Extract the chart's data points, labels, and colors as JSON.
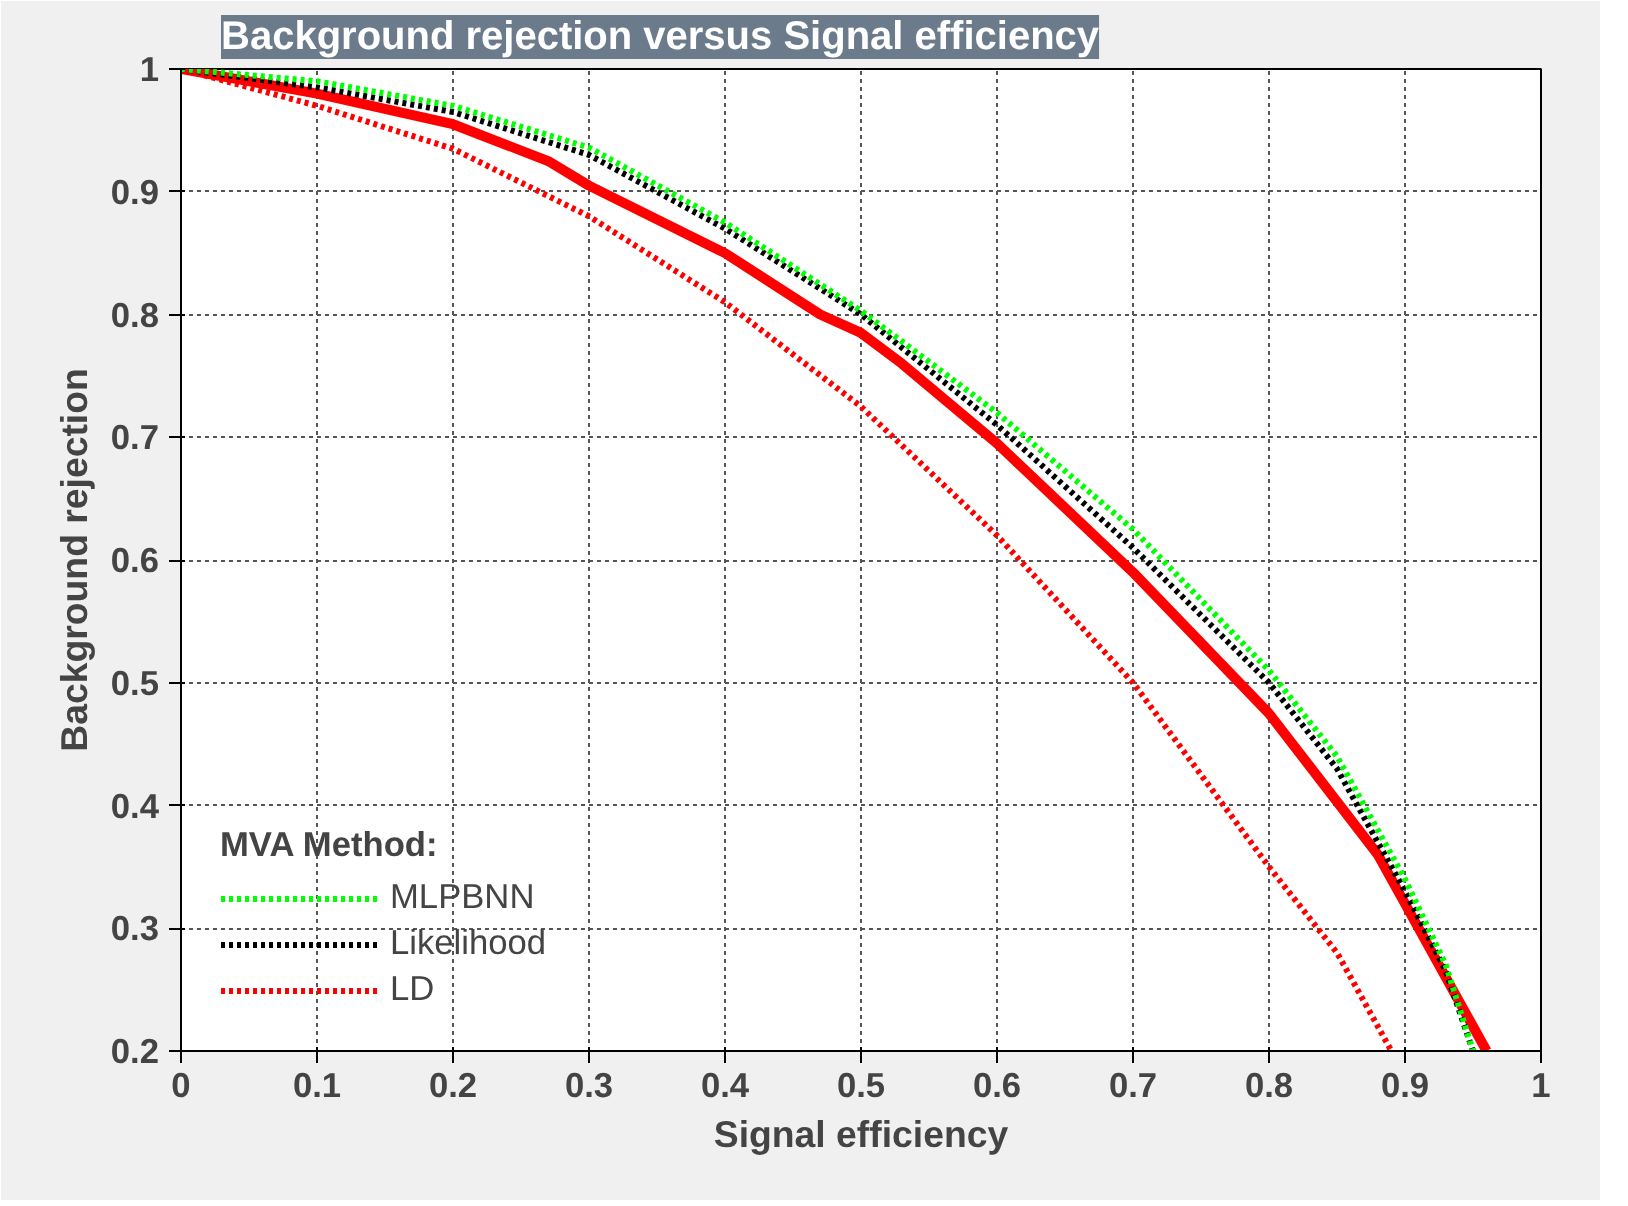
{
  "chart_data": {
    "type": "line",
    "title": "Background rejection versus Signal efficiency",
    "xlabel": "Signal efficiency",
    "ylabel": "Background rejection",
    "legend_title": "MVA Method:",
    "legend": "bottom left",
    "grid": true,
    "marker": "none",
    "xlim": [
      0,
      1
    ],
    "ylim": [
      0.2,
      1
    ],
    "xticks": [
      0,
      0.1,
      0.2,
      0.3,
      0.4,
      0.5,
      0.6,
      0.7,
      0.8,
      0.9,
      1
    ],
    "yticks": [
      0.2,
      0.3,
      0.4,
      0.5,
      0.6,
      0.7,
      0.8,
      0.9,
      1
    ],
    "series": [
      {
        "name": "MLPBNN",
        "color": "#00ff00",
        "line_style": "dotted",
        "x": [
          0,
          0.1,
          0.2,
          0.3,
          0.4,
          0.5,
          0.6,
          0.7,
          0.8,
          0.85,
          0.9,
          0.93,
          0.95
        ],
        "values": [
          1,
          0.99,
          0.97,
          0.936,
          0.875,
          0.803,
          0.72,
          0.625,
          0.51,
          0.44,
          0.34,
          0.27,
          0.2
        ]
      },
      {
        "name": "Likelihood",
        "color": "#000000",
        "line_style": "dotted",
        "x": [
          0,
          0.1,
          0.2,
          0.3,
          0.4,
          0.5,
          0.6,
          0.7,
          0.8,
          0.85,
          0.9,
          0.93,
          0.95
        ],
        "values": [
          1,
          0.985,
          0.965,
          0.93,
          0.87,
          0.8,
          0.71,
          0.61,
          0.5,
          0.43,
          0.33,
          0.265,
          0.2
        ]
      },
      {
        "name": "LD",
        "color": "#ff0000",
        "line_style": "dotted",
        "x": [
          0,
          0.1,
          0.2,
          0.3,
          0.4,
          0.5,
          0.6,
          0.7,
          0.8,
          0.85,
          0.89
        ],
        "values": [
          1,
          0.97,
          0.935,
          0.88,
          0.81,
          0.725,
          0.62,
          0.5,
          0.35,
          0.28,
          0.2
        ]
      },
      {
        "color": "#ff0000",
        "line_style": "solid",
        "x": [
          0,
          0.1,
          0.2,
          0.27,
          0.3,
          0.4,
          0.47,
          0.5,
          0.53,
          0.6,
          0.7,
          0.8,
          0.88,
          0.9,
          0.93,
          0.96
        ],
        "values": [
          1,
          0.98,
          0.955,
          0.925,
          0.905,
          0.85,
          0.8,
          0.785,
          0.76,
          0.695,
          0.59,
          0.475,
          0.36,
          0.32,
          0.26,
          0.2
        ]
      }
    ]
  }
}
